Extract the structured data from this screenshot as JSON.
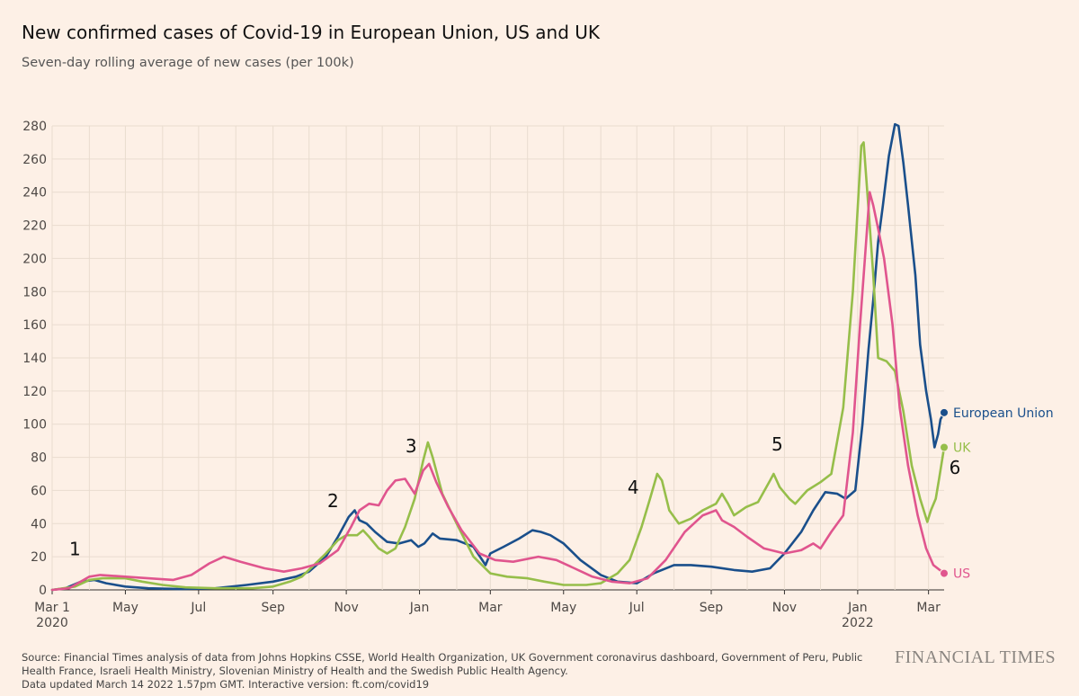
{
  "title": "New confirmed cases of Covid-19 in European Union, US and UK",
  "subtitle": "Seven-day rolling average of new cases (per 100k)",
  "source": "Source: Financial Times analysis of data from Johns Hopkins CSSE, World Health Organization, UK Government coronavirus dashboard, Government of Peru, Public Health France, Israeli Health Ministry, Slovenian Ministry of Health and the Swedish Public Health Agency.",
  "updated": "Data updated March 14 2022 1.57pm GMT. Interactive version: ft.com/covid19",
  "brand": "FINANCIAL TIMES",
  "colors": {
    "eu": "#1a4f8b",
    "uk": "#96be4a",
    "us": "#e0558e",
    "grid": "#e9dccf",
    "axis": "#33302e"
  },
  "chart_data": {
    "type": "line",
    "ylim": [
      0,
      280
    ],
    "yticks": [
      0,
      20,
      40,
      60,
      80,
      100,
      120,
      140,
      160,
      180,
      200,
      220,
      240,
      260,
      280
    ],
    "xlim": [
      "2020-03-01",
      "2022-03-14"
    ],
    "xticks": [
      {
        "date": "2020-03-01",
        "label": "Mar 1",
        "sub": "2020"
      },
      {
        "date": "2020-05-01",
        "label": "May",
        "sub": ""
      },
      {
        "date": "2020-07-01",
        "label": "Jul",
        "sub": ""
      },
      {
        "date": "2020-09-01",
        "label": "Sep",
        "sub": ""
      },
      {
        "date": "2020-11-01",
        "label": "Nov",
        "sub": ""
      },
      {
        "date": "2021-01-01",
        "label": "Jan",
        "sub": ""
      },
      {
        "date": "2021-03-01",
        "label": "Mar",
        "sub": ""
      },
      {
        "date": "2021-05-01",
        "label": "May",
        "sub": ""
      },
      {
        "date": "2021-07-01",
        "label": "Jul",
        "sub": ""
      },
      {
        "date": "2021-09-01",
        "label": "Sep",
        "sub": ""
      },
      {
        "date": "2021-11-01",
        "label": "Nov",
        "sub": ""
      },
      {
        "date": "2022-01-01",
        "label": "Jan",
        "sub": "2022"
      },
      {
        "date": "2022-03-01",
        "label": "Mar",
        "sub": ""
      }
    ],
    "grid": true,
    "series": [
      {
        "name": "European Union",
        "key": "eu",
        "end_value": 107,
        "points": [
          [
            "2020-03-01",
            0
          ],
          [
            "2020-03-12",
            1
          ],
          [
            "2020-03-25",
            5
          ],
          [
            "2020-04-05",
            6
          ],
          [
            "2020-04-15",
            4
          ],
          [
            "2020-05-01",
            2
          ],
          [
            "2020-05-20",
            1
          ],
          [
            "2020-06-15",
            0.5
          ],
          [
            "2020-07-15",
            1
          ],
          [
            "2020-08-10",
            3
          ],
          [
            "2020-09-01",
            5
          ],
          [
            "2020-09-20",
            8
          ],
          [
            "2020-10-01",
            11
          ],
          [
            "2020-10-15",
            20
          ],
          [
            "2020-10-25",
            32
          ],
          [
            "2020-11-03",
            44
          ],
          [
            "2020-11-08",
            48
          ],
          [
            "2020-11-12",
            42
          ],
          [
            "2020-11-18",
            40
          ],
          [
            "2020-11-25",
            35
          ],
          [
            "2020-12-05",
            29
          ],
          [
            "2020-12-15",
            28
          ],
          [
            "2020-12-25",
            30
          ],
          [
            "2020-12-31",
            26
          ],
          [
            "2021-01-05",
            28
          ],
          [
            "2021-01-12",
            34
          ],
          [
            "2021-01-18",
            31
          ],
          [
            "2021-02-01",
            30
          ],
          [
            "2021-02-15",
            26
          ],
          [
            "2021-02-25",
            15
          ],
          [
            "2021-03-01",
            22
          ],
          [
            "2021-03-12",
            26
          ],
          [
            "2021-03-25",
            31
          ],
          [
            "2021-04-05",
            36
          ],
          [
            "2021-04-12",
            35
          ],
          [
            "2021-04-20",
            33
          ],
          [
            "2021-05-01",
            28
          ],
          [
            "2021-05-15",
            18
          ],
          [
            "2021-06-01",
            9
          ],
          [
            "2021-06-15",
            5
          ],
          [
            "2021-07-01",
            4
          ],
          [
            "2021-07-15",
            10
          ],
          [
            "2021-08-01",
            15
          ],
          [
            "2021-08-15",
            15
          ],
          [
            "2021-09-01",
            14
          ],
          [
            "2021-09-20",
            12
          ],
          [
            "2021-10-05",
            11
          ],
          [
            "2021-10-20",
            13
          ],
          [
            "2021-11-01",
            22
          ],
          [
            "2021-11-15",
            35
          ],
          [
            "2021-11-25",
            48
          ],
          [
            "2021-12-05",
            59
          ],
          [
            "2021-12-15",
            58
          ],
          [
            "2021-12-22",
            55
          ],
          [
            "2021-12-30",
            60
          ],
          [
            "2022-01-05",
            100
          ],
          [
            "2022-01-10",
            145
          ],
          [
            "2022-01-14",
            175
          ],
          [
            "2022-01-18",
            210
          ],
          [
            "2022-01-22",
            232
          ],
          [
            "2022-01-27",
            262
          ],
          [
            "2022-02-01",
            281
          ],
          [
            "2022-02-04",
            280
          ],
          [
            "2022-02-08",
            258
          ],
          [
            "2022-02-12",
            232
          ],
          [
            "2022-02-18",
            190
          ],
          [
            "2022-02-22",
            148
          ],
          [
            "2022-02-27",
            120
          ],
          [
            "2022-03-03",
            103
          ],
          [
            "2022-03-06",
            86
          ],
          [
            "2022-03-09",
            94
          ],
          [
            "2022-03-11",
            103
          ],
          [
            "2022-03-14",
            107
          ]
        ]
      },
      {
        "name": "UK",
        "key": "uk",
        "end_value": 86,
        "points": [
          [
            "2020-03-01",
            0
          ],
          [
            "2020-03-20",
            2
          ],
          [
            "2020-04-01",
            6
          ],
          [
            "2020-04-12",
            7
          ],
          [
            "2020-05-01",
            7
          ],
          [
            "2020-05-15",
            5
          ],
          [
            "2020-06-01",
            3
          ],
          [
            "2020-06-20",
            1.5
          ],
          [
            "2020-07-15",
            1
          ],
          [
            "2020-08-15",
            1
          ],
          [
            "2020-09-01",
            2
          ],
          [
            "2020-09-15",
            5
          ],
          [
            "2020-09-25",
            8
          ],
          [
            "2020-10-05",
            15
          ],
          [
            "2020-10-15",
            22
          ],
          [
            "2020-10-25",
            30
          ],
          [
            "2020-11-01",
            33
          ],
          [
            "2020-11-10",
            33
          ],
          [
            "2020-11-15",
            36
          ],
          [
            "2020-11-20",
            32
          ],
          [
            "2020-11-28",
            25
          ],
          [
            "2020-12-05",
            22
          ],
          [
            "2020-12-12",
            25
          ],
          [
            "2020-12-20",
            38
          ],
          [
            "2020-12-28",
            55
          ],
          [
            "2021-01-04",
            78
          ],
          [
            "2021-01-08",
            89
          ],
          [
            "2021-01-12",
            80
          ],
          [
            "2021-01-20",
            58
          ],
          [
            "2021-02-01",
            40
          ],
          [
            "2021-02-15",
            20
          ],
          [
            "2021-03-01",
            10
          ],
          [
            "2021-03-15",
            8
          ],
          [
            "2021-04-01",
            7
          ],
          [
            "2021-04-15",
            5
          ],
          [
            "2021-05-01",
            3
          ],
          [
            "2021-05-20",
            3
          ],
          [
            "2021-06-01",
            4
          ],
          [
            "2021-06-15",
            10
          ],
          [
            "2021-06-25",
            18
          ],
          [
            "2021-07-05",
            38
          ],
          [
            "2021-07-12",
            55
          ],
          [
            "2021-07-18",
            70
          ],
          [
            "2021-07-22",
            66
          ],
          [
            "2021-07-28",
            48
          ],
          [
            "2021-08-05",
            40
          ],
          [
            "2021-08-15",
            43
          ],
          [
            "2021-08-25",
            48
          ],
          [
            "2021-09-05",
            52
          ],
          [
            "2021-09-10",
            58
          ],
          [
            "2021-09-15",
            52
          ],
          [
            "2021-09-20",
            45
          ],
          [
            "2021-09-30",
            50
          ],
          [
            "2021-10-10",
            53
          ],
          [
            "2021-10-20",
            66
          ],
          [
            "2021-10-23",
            70
          ],
          [
            "2021-10-28",
            62
          ],
          [
            "2021-11-05",
            55
          ],
          [
            "2021-11-10",
            52
          ],
          [
            "2021-11-20",
            60
          ],
          [
            "2021-12-01",
            65
          ],
          [
            "2021-12-10",
            70
          ],
          [
            "2021-12-20",
            110
          ],
          [
            "2021-12-28",
            180
          ],
          [
            "2022-01-04",
            268
          ],
          [
            "2022-01-06",
            270
          ],
          [
            "2022-01-10",
            230
          ],
          [
            "2022-01-14",
            190
          ],
          [
            "2022-01-18",
            140
          ],
          [
            "2022-01-25",
            138
          ],
          [
            "2022-02-01",
            132
          ],
          [
            "2022-02-08",
            108
          ],
          [
            "2022-02-15",
            75
          ],
          [
            "2022-02-22",
            55
          ],
          [
            "2022-02-28",
            41
          ],
          [
            "2022-03-03",
            48
          ],
          [
            "2022-03-07",
            55
          ],
          [
            "2022-03-10",
            68
          ],
          [
            "2022-03-14",
            86
          ]
        ]
      },
      {
        "name": "US",
        "key": "us",
        "end_value": 10,
        "points": [
          [
            "2020-03-01",
            0
          ],
          [
            "2020-03-15",
            1
          ],
          [
            "2020-04-01",
            8
          ],
          [
            "2020-04-10",
            9
          ],
          [
            "2020-05-01",
            8
          ],
          [
            "2020-05-20",
            7
          ],
          [
            "2020-06-10",
            6
          ],
          [
            "2020-06-25",
            9
          ],
          [
            "2020-07-10",
            16
          ],
          [
            "2020-07-22",
            20
          ],
          [
            "2020-08-05",
            17
          ],
          [
            "2020-08-25",
            13
          ],
          [
            "2020-09-10",
            11
          ],
          [
            "2020-09-25",
            13
          ],
          [
            "2020-10-10",
            16
          ],
          [
            "2020-10-25",
            24
          ],
          [
            "2020-11-05",
            38
          ],
          [
            "2020-11-12",
            48
          ],
          [
            "2020-11-20",
            52
          ],
          [
            "2020-11-28",
            51
          ],
          [
            "2020-12-05",
            60
          ],
          [
            "2020-12-12",
            66
          ],
          [
            "2020-12-20",
            67
          ],
          [
            "2020-12-28",
            58
          ],
          [
            "2021-01-04",
            72
          ],
          [
            "2021-01-09",
            76
          ],
          [
            "2021-01-15",
            65
          ],
          [
            "2021-01-25",
            50
          ],
          [
            "2021-02-05",
            36
          ],
          [
            "2021-02-20",
            22
          ],
          [
            "2021-03-05",
            18
          ],
          [
            "2021-03-20",
            17
          ],
          [
            "2021-04-10",
            20
          ],
          [
            "2021-04-25",
            18
          ],
          [
            "2021-05-10",
            13
          ],
          [
            "2021-05-25",
            8
          ],
          [
            "2021-06-10",
            5
          ],
          [
            "2021-06-25",
            4
          ],
          [
            "2021-07-10",
            7
          ],
          [
            "2021-07-25",
            18
          ],
          [
            "2021-08-10",
            35
          ],
          [
            "2021-08-25",
            45
          ],
          [
            "2021-09-05",
            48
          ],
          [
            "2021-09-10",
            42
          ],
          [
            "2021-09-20",
            38
          ],
          [
            "2021-10-01",
            32
          ],
          [
            "2021-10-15",
            25
          ],
          [
            "2021-11-01",
            22
          ],
          [
            "2021-11-15",
            24
          ],
          [
            "2021-11-25",
            28
          ],
          [
            "2021-12-01",
            25
          ],
          [
            "2021-12-10",
            35
          ],
          [
            "2021-12-20",
            45
          ],
          [
            "2021-12-28",
            95
          ],
          [
            "2022-01-03",
            160
          ],
          [
            "2022-01-07",
            200
          ],
          [
            "2022-01-11",
            240
          ],
          [
            "2022-01-14",
            232
          ],
          [
            "2022-01-18",
            218
          ],
          [
            "2022-01-23",
            200
          ],
          [
            "2022-01-30",
            160
          ],
          [
            "2022-02-05",
            110
          ],
          [
            "2022-02-12",
            75
          ],
          [
            "2022-02-20",
            45
          ],
          [
            "2022-02-27",
            25
          ],
          [
            "2022-03-05",
            15
          ],
          [
            "2022-03-14",
            10
          ]
        ]
      }
    ],
    "annotations": [
      {
        "label": "1",
        "date": "2020-03-20",
        "value": 21
      },
      {
        "label": "2",
        "date": "2020-10-21",
        "value": 50
      },
      {
        "label": "3",
        "date": "2020-12-25",
        "value": 83
      },
      {
        "label": "4",
        "date": "2021-06-28",
        "value": 58
      },
      {
        "label": "5",
        "date": "2021-10-26",
        "value": 84
      },
      {
        "label": "6",
        "date": "2022-03-23",
        "value": 70
      }
    ]
  }
}
